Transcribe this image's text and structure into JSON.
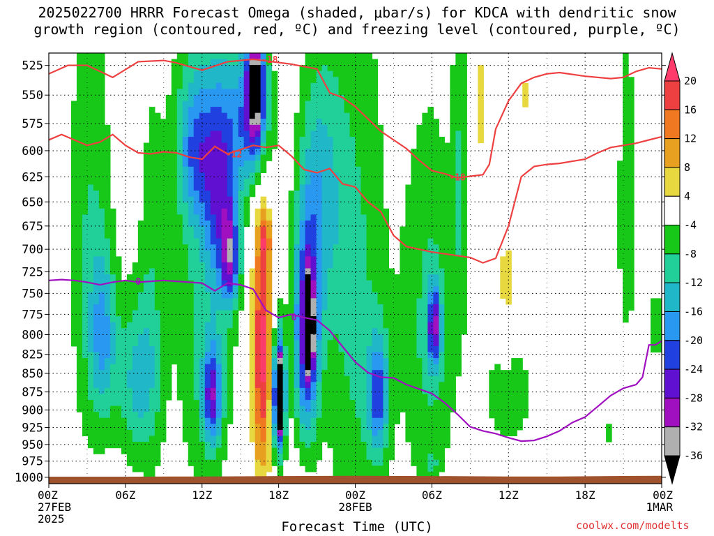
{
  "title_line1": "2025022700 HRRR Forecast Omega (shaded, μbar/s) for KDCA with dendritic snow",
  "title_line2": "growth region (contoured, red, ºC) and freezing level (contoured, purple, ºC)",
  "credit": "coolwx.com/modelts",
  "chart_data": {
    "type": "heatmap",
    "xlabel": "Forecast Time (UTC)",
    "ylabel": "",
    "x_range_hours": [
      0,
      48
    ],
    "y_range_hpa": [
      1010,
      515
    ],
    "y_scale": "log",
    "grid": true,
    "y_ticks": [
      525,
      550,
      575,
      600,
      625,
      650,
      675,
      700,
      725,
      750,
      775,
      800,
      825,
      850,
      875,
      900,
      925,
      950,
      975,
      1000
    ],
    "x_ticks": [
      {
        "hour": 0,
        "line1": "00Z",
        "line2": "27FEB",
        "line3": "2025"
      },
      {
        "hour": 6,
        "line1": "06Z",
        "line2": "",
        "line3": ""
      },
      {
        "hour": 12,
        "line1": "12Z",
        "line2": "",
        "line3": ""
      },
      {
        "hour": 18,
        "line1": "18Z",
        "line2": "",
        "line3": ""
      },
      {
        "hour": 24,
        "line1": "00Z",
        "line2": "28FEB",
        "line3": ""
      },
      {
        "hour": 30,
        "line1": "06Z",
        "line2": "",
        "line3": ""
      },
      {
        "hour": 36,
        "line1": "12Z",
        "line2": "",
        "line3": ""
      },
      {
        "hour": 42,
        "line1": "18Z",
        "line2": "",
        "line3": ""
      },
      {
        "hour": 48,
        "line1": "00Z",
        "line2": "1MAR",
        "line3": ""
      }
    ],
    "colorbar": {
      "labels": [
        20,
        16,
        12,
        8,
        4,
        -4,
        -8,
        -12,
        -16,
        -20,
        -24,
        -28,
        -32,
        -36
      ],
      "bins": [
        {
          "color": "#ff3b6b",
          "from": 20,
          "to": 24
        },
        {
          "color": "#ee4040",
          "from": 16,
          "to": 20
        },
        {
          "color": "#f07820",
          "from": 12,
          "to": 16
        },
        {
          "color": "#e8a020",
          "from": 8,
          "to": 12
        },
        {
          "color": "#e8d840",
          "from": 4,
          "to": 8
        },
        {
          "color": "#ffffff",
          "from": -4,
          "to": 4
        },
        {
          "color": "#18c818",
          "from": -8,
          "to": -4
        },
        {
          "color": "#20d098",
          "from": -12,
          "to": -8
        },
        {
          "color": "#20b8c8",
          "from": -16,
          "to": -12
        },
        {
          "color": "#2898f0",
          "from": -20,
          "to": -16
        },
        {
          "color": "#2040e0",
          "from": -24,
          "to": -20
        },
        {
          "color": "#6010d0",
          "from": -28,
          "to": -24
        },
        {
          "color": "#a010c0",
          "from": -32,
          "to": -28
        },
        {
          "color": "#b0b0b0",
          "from": -36,
          "to": -32
        },
        {
          "color": "#000000",
          "from": -40,
          "to": -36
        }
      ]
    },
    "omega_blobs": [
      {
        "t": 1.0,
        "p": 750,
        "ht": 0.7,
        "hp": 200,
        "v": 6
      },
      {
        "t": 3.2,
        "p": 690,
        "ht": 2.2,
        "hp": 340,
        "v": -8
      },
      {
        "t": 4.2,
        "p": 800,
        "ht": 1.2,
        "hp": 120,
        "v": -13
      },
      {
        "t": 6.8,
        "p": 860,
        "ht": 2.0,
        "hp": 130,
        "v": -12
      },
      {
        "t": 8.0,
        "p": 750,
        "ht": 1.3,
        "hp": 300,
        "v": -6
      },
      {
        "t": 12.2,
        "p": 700,
        "ht": 3.0,
        "hp": 420,
        "v": -9
      },
      {
        "t": 11.5,
        "p": 600,
        "ht": 1.8,
        "hp": 80,
        "v": -14
      },
      {
        "t": 13.5,
        "p": 640,
        "ht": 1.5,
        "hp": 120,
        "v": -17
      },
      {
        "t": 12.8,
        "p": 880,
        "ht": 0.9,
        "hp": 80,
        "v": -22
      },
      {
        "t": 14.2,
        "p": 710,
        "ht": 0.8,
        "hp": 60,
        "v": -20
      },
      {
        "t": 15.8,
        "p": 570,
        "ht": 2.0,
        "hp": 80,
        "v": -18
      },
      {
        "t": 16.2,
        "p": 540,
        "ht": 0.8,
        "hp": 60,
        "v": -30
      },
      {
        "t": 16.7,
        "p": 820,
        "ht": 0.9,
        "hp": 200,
        "v": 22
      },
      {
        "t": 16.9,
        "p": 690,
        "ht": 0.5,
        "hp": 30,
        "v": 10
      },
      {
        "t": 18.0,
        "p": 880,
        "ht": 0.6,
        "hp": 100,
        "v": -34
      },
      {
        "t": 18.1,
        "p": 880,
        "ht": 0.3,
        "hp": 50,
        "v": -38
      },
      {
        "t": 20.2,
        "p": 800,
        "ht": 1.2,
        "hp": 160,
        "v": -27
      },
      {
        "t": 20.4,
        "p": 790,
        "ht": 0.35,
        "hp": 60,
        "v": -38
      },
      {
        "t": 21.2,
        "p": 640,
        "ht": 2.0,
        "hp": 160,
        "v": -12
      },
      {
        "t": 24.0,
        "p": 760,
        "ht": 3.0,
        "hp": 420,
        "v": -9
      },
      {
        "t": 25.8,
        "p": 880,
        "ht": 1.0,
        "hp": 100,
        "v": -18
      },
      {
        "t": 29.8,
        "p": 790,
        "ht": 2.6,
        "hp": 300,
        "v": -9
      },
      {
        "t": 30.2,
        "p": 790,
        "ht": 0.6,
        "hp": 60,
        "v": -22
      },
      {
        "t": 30.0,
        "p": 980,
        "ht": 0.5,
        "hp": 20,
        "v": -7
      },
      {
        "t": 32.2,
        "p": 620,
        "ht": 0.8,
        "hp": 200,
        "v": -7
      },
      {
        "t": 36.0,
        "p": 880,
        "ht": 2.4,
        "hp": 100,
        "v": -7
      },
      {
        "t": 35.8,
        "p": 750,
        "ht": 0.6,
        "hp": 120,
        "v": 6
      },
      {
        "t": 33.8,
        "p": 560,
        "ht": 0.8,
        "hp": 70,
        "v": 6
      },
      {
        "t": 37.4,
        "p": 550,
        "ht": 0.4,
        "hp": 30,
        "v": 5
      },
      {
        "t": 44.2,
        "p": 600,
        "ht": 0.5,
        "hp": 200,
        "v": 5
      },
      {
        "t": 41.4,
        "p": 840,
        "ht": 0.3,
        "hp": 40,
        "v": 6
      },
      {
        "t": 45.2,
        "p": 650,
        "ht": 1.5,
        "hp": 250,
        "v": -6
      },
      {
        "t": 47.6,
        "p": 790,
        "ht": 0.7,
        "hp": 60,
        "v": -7
      },
      {
        "t": 44.0,
        "p": 930,
        "ht": 0.3,
        "hp": 40,
        "v": -6
      }
    ],
    "contours": [
      {
        "name": "-18",
        "color": "#ee4040",
        "points": [
          [
            0,
            532
          ],
          [
            1.5,
            525
          ],
          [
            3,
            525
          ],
          [
            5,
            535
          ],
          [
            7,
            522
          ],
          [
            9,
            521
          ],
          [
            10,
            523
          ],
          [
            12,
            529
          ],
          [
            14,
            522
          ],
          [
            16,
            520
          ],
          [
            17.5,
            522
          ],
          [
            19,
            524
          ],
          [
            21,
            528
          ],
          [
            22,
            548
          ],
          [
            23,
            552
          ],
          [
            24,
            560
          ],
          [
            26,
            582
          ],
          [
            28,
            598
          ],
          [
            29,
            609
          ],
          [
            30,
            619
          ],
          [
            31,
            622
          ],
          [
            32,
            626
          ],
          [
            34,
            623
          ],
          [
            34.5,
            613
          ],
          [
            35,
            580
          ],
          [
            36,
            555
          ],
          [
            37,
            540
          ],
          [
            38,
            535
          ],
          [
            39,
            532
          ],
          [
            40,
            531
          ],
          [
            42,
            534
          ],
          [
            44,
            536
          ],
          [
            45,
            535
          ],
          [
            46,
            530
          ],
          [
            47,
            527
          ],
          [
            48,
            528
          ]
        ],
        "label": {
          "t": 17.3,
          "p": 520,
          "text": "-18"
        },
        "label2": {
          "t": 32.0,
          "p": 625,
          "text": "-18"
        }
      },
      {
        "name": "-12",
        "color": "#ee4040",
        "points": [
          [
            0,
            590
          ],
          [
            1,
            585
          ],
          [
            2,
            590
          ],
          [
            3,
            595
          ],
          [
            4,
            592
          ],
          [
            5,
            585
          ],
          [
            6,
            595
          ],
          [
            7,
            602
          ],
          [
            8,
            603
          ],
          [
            9,
            601
          ],
          [
            10,
            602
          ],
          [
            11,
            606
          ],
          [
            12,
            608
          ],
          [
            13,
            596
          ],
          [
            14,
            603
          ],
          [
            15,
            599
          ],
          [
            16,
            595
          ],
          [
            17,
            597
          ],
          [
            18,
            595
          ],
          [
            19,
            605
          ],
          [
            20,
            618
          ],
          [
            21,
            621
          ],
          [
            22,
            617
          ],
          [
            23,
            632
          ],
          [
            24,
            635
          ],
          [
            25,
            650
          ],
          [
            26,
            660
          ],
          [
            27,
            685
          ],
          [
            28,
            697
          ],
          [
            29,
            700
          ],
          [
            30,
            703
          ],
          [
            31,
            705
          ],
          [
            32,
            707
          ],
          [
            33,
            709
          ],
          [
            34,
            715
          ],
          [
            35,
            710
          ],
          [
            36,
            675
          ],
          [
            37,
            625
          ],
          [
            38,
            615
          ],
          [
            39,
            613
          ],
          [
            40,
            612
          ],
          [
            41,
            610
          ],
          [
            42,
            608
          ],
          [
            43,
            602
          ],
          [
            44,
            597
          ],
          [
            45,
            595
          ],
          [
            46,
            593
          ],
          [
            47,
            590
          ],
          [
            48,
            587
          ]
        ],
        "label": {
          "t": 14.5,
          "p": 603,
          "text": "-12"
        }
      },
      {
        "name": "0",
        "color": "#a010c0",
        "points": [
          [
            0,
            735
          ],
          [
            1,
            734
          ],
          [
            2,
            735
          ],
          [
            3,
            737
          ],
          [
            4,
            740
          ],
          [
            5,
            737
          ],
          [
            6,
            735
          ],
          [
            7,
            737
          ],
          [
            8,
            736
          ],
          [
            9,
            735
          ],
          [
            10,
            736
          ],
          [
            11,
            737
          ],
          [
            12,
            738
          ],
          [
            13,
            747
          ],
          [
            14,
            738
          ],
          [
            15,
            740
          ],
          [
            16,
            745
          ],
          [
            17,
            770
          ],
          [
            18,
            779
          ],
          [
            19,
            775
          ],
          [
            20,
            779
          ],
          [
            21,
            782
          ],
          [
            22,
            795
          ],
          [
            23,
            815
          ],
          [
            24,
            835
          ],
          [
            25,
            849
          ],
          [
            26,
            855
          ],
          [
            27,
            856
          ],
          [
            28,
            865
          ],
          [
            29,
            871
          ],
          [
            30,
            877
          ],
          [
            31,
            890
          ],
          [
            32,
            906
          ],
          [
            33,
            924
          ],
          [
            34,
            930
          ],
          [
            35,
            934
          ],
          [
            36,
            940
          ],
          [
            37,
            945
          ],
          [
            38,
            944
          ],
          [
            39,
            938
          ],
          [
            40,
            930
          ],
          [
            41,
            918
          ],
          [
            42,
            910
          ],
          [
            43,
            895
          ],
          [
            44,
            880
          ],
          [
            45,
            870
          ],
          [
            46,
            865
          ],
          [
            46.5,
            855
          ],
          [
            47,
            813
          ],
          [
            47.5,
            813
          ],
          [
            48,
            808
          ]
        ],
        "label": {
          "t": 7.0,
          "p": 736,
          "text": "0"
        },
        "label2": {
          "t": 19.2,
          "p": 778,
          "text": "0"
        }
      }
    ]
  }
}
